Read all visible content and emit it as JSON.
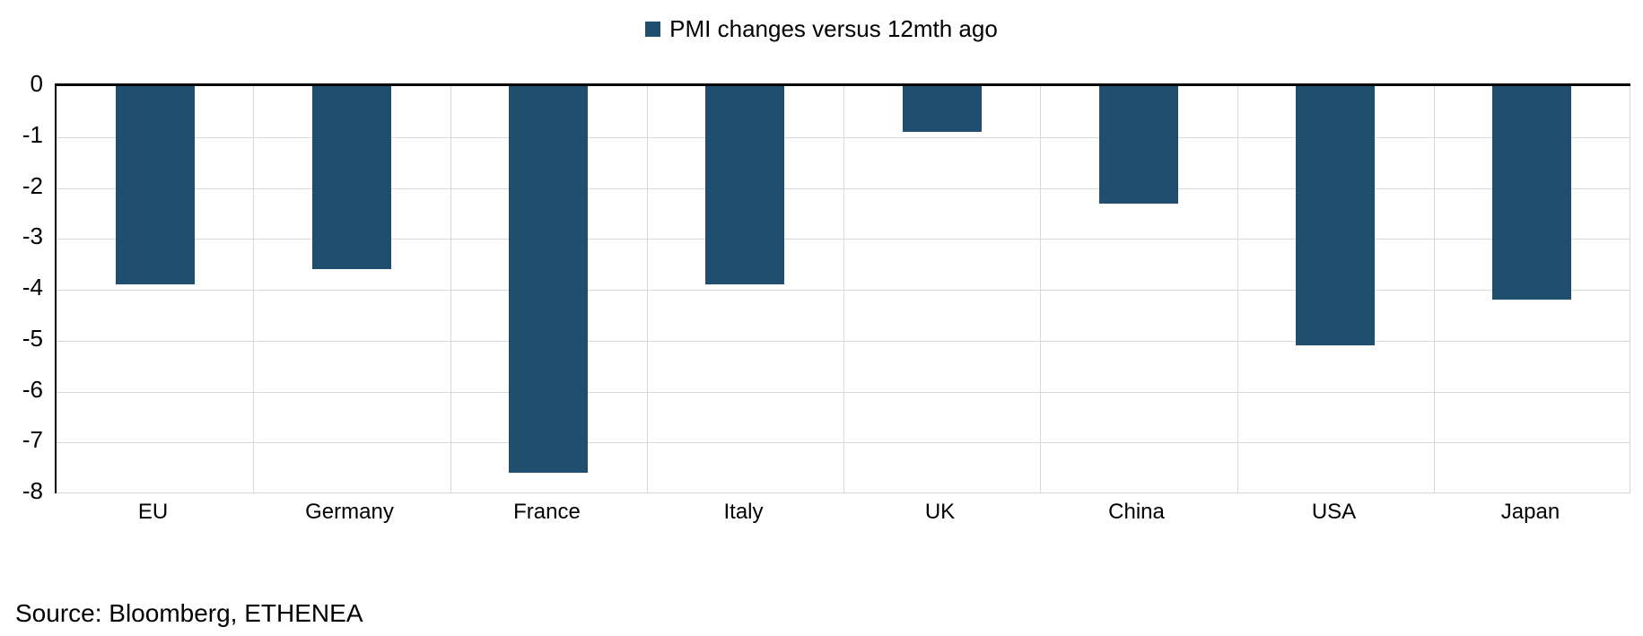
{
  "legend": {
    "label": "PMI changes versus 12mth ago",
    "marker_color": "#1F4E6E"
  },
  "source": {
    "text": "Source: Bloomberg, ETHENEA"
  },
  "chart_data": {
    "type": "bar",
    "title": "",
    "series_name": "PMI changes versus 12mth ago",
    "categories": [
      "EU",
      "Germany",
      "France",
      "Italy",
      "UK",
      "China",
      "USA",
      "Japan"
    ],
    "values": [
      -3.9,
      -3.6,
      -7.6,
      -3.9,
      -0.9,
      -2.3,
      -5.1,
      -4.2
    ],
    "ylim": [
      -8,
      0
    ],
    "yticks": [
      0,
      -1,
      -2,
      -3,
      -4,
      -5,
      -6,
      -7,
      -8
    ],
    "bar_color": "#1F4E6E",
    "gridline_color": "#D9D9D9",
    "axis_color": "#000000",
    "grid": true,
    "legend_position": "top-center"
  }
}
